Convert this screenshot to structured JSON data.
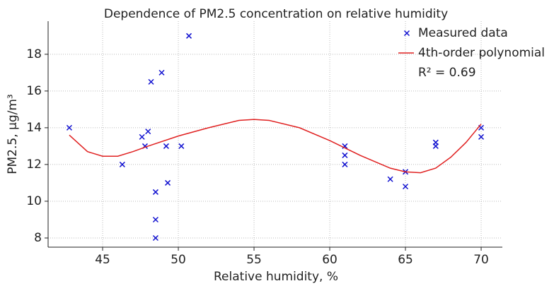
{
  "chart_data": {
    "type": "scatter",
    "title": "Dependence of PM2.5 concentration on relative humidity",
    "x_label": "Relative humidity, %",
    "y_label": "PM2.5, µg/m³",
    "annotation": "R² = 0.69",
    "xlim": [
      41.4,
      71.4
    ],
    "ylim": [
      7.5,
      19.8
    ],
    "xticks": [
      45,
      50,
      55,
      60,
      65,
      70
    ],
    "yticks": [
      8,
      10,
      12,
      14,
      16,
      18
    ],
    "grid": true,
    "legend": "upper right",
    "series": [
      {
        "name": "Measured data",
        "type": "scatter",
        "color": "#1010d0",
        "x": [
          42.8,
          46.3,
          47.6,
          47.8,
          48,
          48.2,
          48.5,
          48.5,
          48.5,
          48.9,
          49.2,
          49.3,
          50.2,
          50.7,
          61,
          61,
          61,
          64,
          65,
          65,
          67,
          67,
          70,
          70
        ],
        "values": [
          14,
          12,
          13.5,
          13,
          13.8,
          16.5,
          10.5,
          9,
          8,
          17,
          13,
          11,
          13,
          19,
          13,
          12.5,
          12,
          11.2,
          11.6,
          10.8,
          13.2,
          13,
          14,
          13.5
        ]
      },
      {
        "name": "4th-order polynomial",
        "type": "line",
        "color": "#e02020",
        "x": [
          42.8,
          44,
          45,
          46,
          47,
          48,
          50,
          52,
          54,
          55,
          56,
          58,
          60,
          62,
          64,
          65,
          66,
          67,
          68,
          69,
          70
        ],
        "values": [
          13.6,
          12.7,
          12.45,
          12.45,
          12.7,
          13.0,
          13.55,
          14.0,
          14.4,
          14.45,
          14.4,
          14.0,
          13.3,
          12.5,
          11.8,
          11.6,
          11.55,
          11.8,
          12.4,
          13.2,
          14.2
        ]
      }
    ]
  }
}
